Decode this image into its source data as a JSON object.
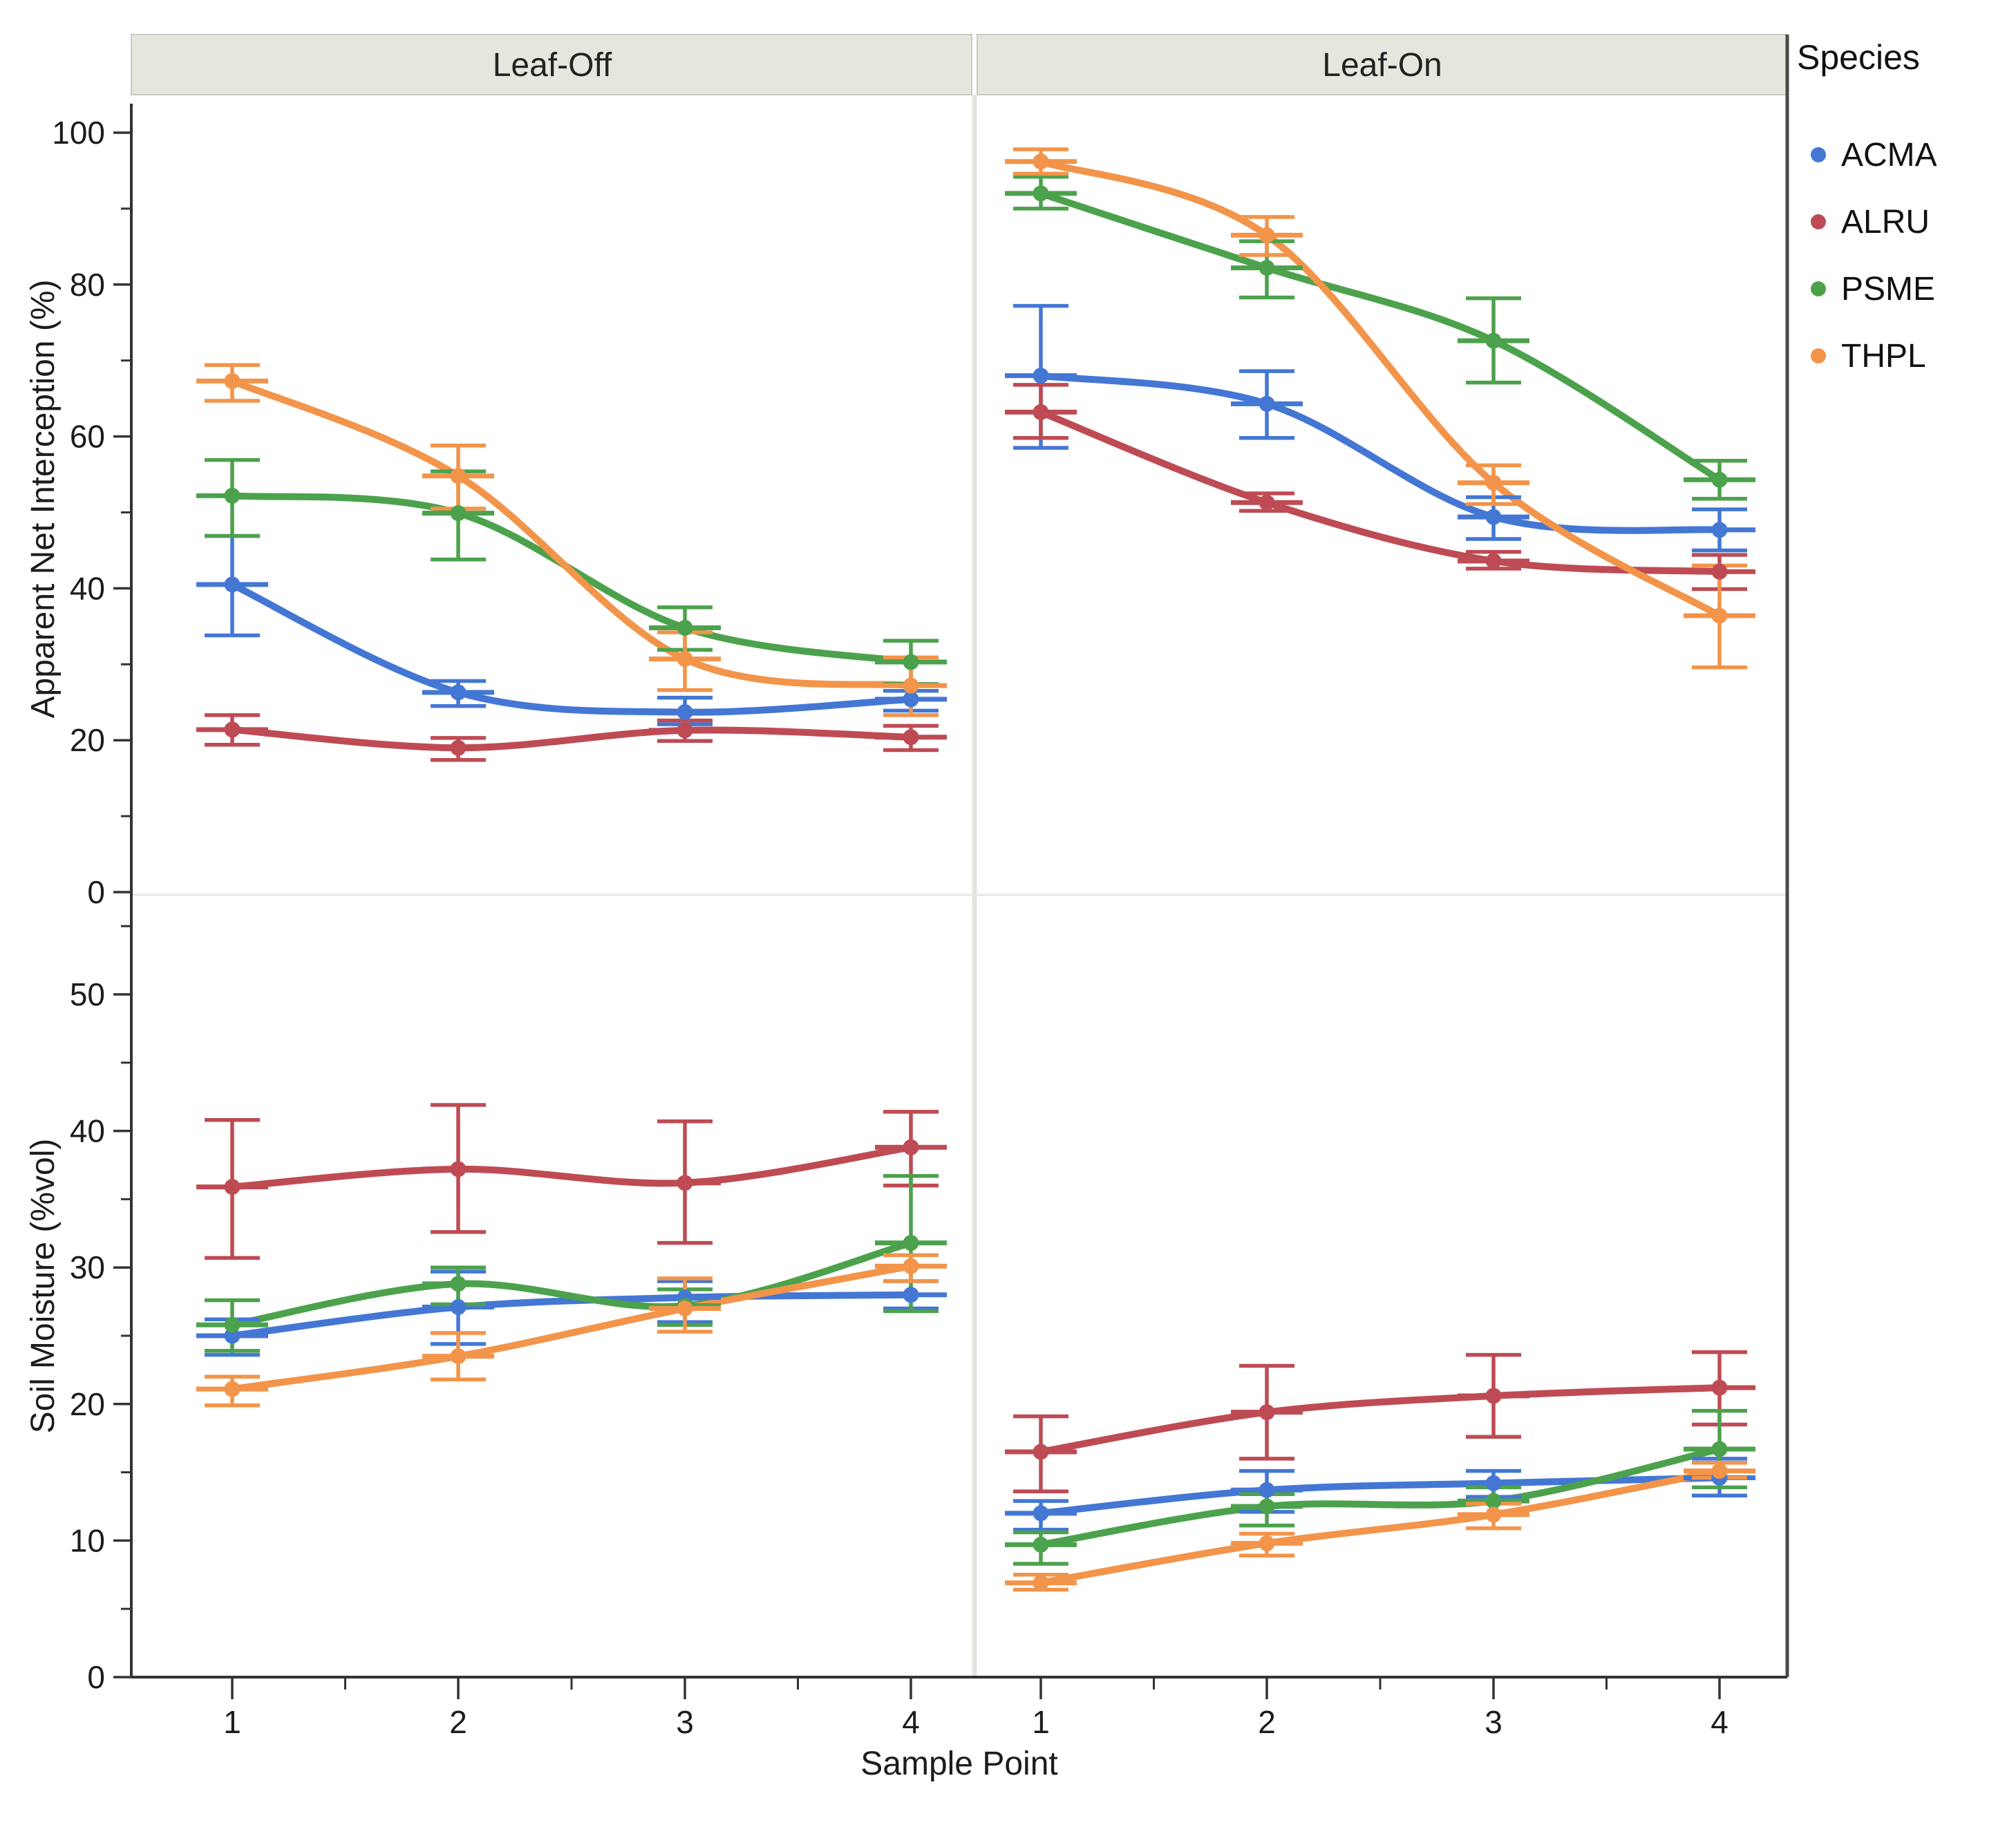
{
  "facets": [
    {
      "label": "Leaf-Off"
    },
    {
      "label": "Leaf-On"
    }
  ],
  "legend": {
    "title": "Species",
    "items": [
      {
        "label": "ACMA",
        "color": "#4477D4"
      },
      {
        "label": "ALRU",
        "color": "#BE4B54"
      },
      {
        "label": "PSME",
        "color": "#4CA24C"
      },
      {
        "label": "THPL",
        "color": "#F2944A"
      }
    ]
  },
  "axes": {
    "x": {
      "title": "Sample Point",
      "tick_labels": [
        "1",
        "2",
        "3",
        "4"
      ],
      "tick_values": [
        1,
        2,
        3,
        4
      ]
    },
    "y_top": {
      "title": "Apparent Net Interception (%)",
      "tick_values": [
        0,
        20,
        40,
        60,
        80,
        100
      ],
      "tick_labels": [
        "0",
        "20",
        "40",
        "60",
        "80",
        "100"
      ],
      "minor_ticks": [
        10,
        30,
        50,
        70,
        90
      ],
      "range": [
        0,
        104
      ]
    },
    "y_bottom": {
      "title": "Soil Moisture (%vol)",
      "tick_values": [
        0,
        10,
        20,
        30,
        40,
        50
      ],
      "tick_labels": [
        "0",
        "10",
        "20",
        "30",
        "40",
        "50"
      ],
      "minor_ticks": [
        5,
        15,
        25,
        35,
        45,
        55
      ],
      "range": [
        0,
        57.3
      ]
    }
  },
  "colors": {
    "facet_strip_bg": "#E7E6DD",
    "facet_strip_border": "#CBCAC1",
    "axis_line": "#333333",
    "panel_right_frame": "#4A4A4A",
    "panel_divider": "#E4E4DF",
    "row_separator": "#E6E6E2"
  },
  "chart_data": [
    {
      "type": "line",
      "facet": "Leaf-Off",
      "ylabel": "Apparent Net Interception (%)",
      "xlabel": "Sample Point",
      "x": [
        1,
        2,
        3,
        4
      ],
      "ylim": [
        0,
        104
      ],
      "grid": false,
      "legend_position": "right",
      "series": [
        {
          "name": "ACMA",
          "color": "#4477D4",
          "values": [
            40.5,
            26.3,
            23.7,
            25.4
          ],
          "err_lo": [
            33.8,
            24.5,
            22.1,
            23.9
          ],
          "err_hi": [
            46.9,
            27.8,
            25.6,
            26.5
          ]
        },
        {
          "name": "ALRU",
          "color": "#BE4B54",
          "values": [
            21.4,
            19.0,
            21.3,
            20.4
          ],
          "err_lo": [
            19.4,
            17.4,
            19.9,
            18.7
          ],
          "err_hi": [
            23.3,
            20.3,
            22.6,
            21.9
          ]
        },
        {
          "name": "PSME",
          "color": "#4CA24C",
          "values": [
            52.2,
            49.9,
            34.8,
            30.3
          ],
          "err_lo": [
            46.9,
            43.8,
            31.9,
            27.4
          ],
          "err_hi": [
            56.9,
            55.4,
            37.5,
            33.1
          ]
        },
        {
          "name": "THPL",
          "color": "#F2944A",
          "values": [
            67.3,
            54.8,
            30.7,
            27.2
          ],
          "err_lo": [
            64.7,
            50.5,
            26.6,
            23.3
          ],
          "err_hi": [
            69.4,
            58.8,
            34.2,
            30.9
          ]
        }
      ]
    },
    {
      "type": "line",
      "facet": "Leaf-On",
      "ylabel": "Apparent Net Interception (%)",
      "xlabel": "Sample Point",
      "x": [
        1,
        2,
        3,
        4
      ],
      "ylim": [
        0,
        104
      ],
      "grid": false,
      "legend_position": "right",
      "series": [
        {
          "name": "ACMA",
          "color": "#4477D4",
          "values": [
            68.0,
            64.3,
            49.4,
            47.7
          ],
          "err_lo": [
            58.5,
            59.8,
            46.5,
            45.0
          ],
          "err_hi": [
            77.2,
            68.6,
            52.0,
            50.4
          ]
        },
        {
          "name": "ALRU",
          "color": "#BE4B54",
          "values": [
            63.2,
            51.3,
            43.6,
            42.2
          ],
          "err_lo": [
            59.8,
            50.2,
            42.6,
            39.9
          ],
          "err_hi": [
            66.8,
            52.5,
            44.8,
            44.4
          ]
        },
        {
          "name": "PSME",
          "color": "#4CA24C",
          "values": [
            92.0,
            82.2,
            72.6,
            54.3
          ],
          "err_lo": [
            90.0,
            78.3,
            67.1,
            51.8
          ],
          "err_hi": [
            94.2,
            85.7,
            78.2,
            56.8
          ]
        },
        {
          "name": "THPL",
          "color": "#F2944A",
          "values": [
            96.2,
            86.5,
            53.9,
            36.4
          ],
          "err_lo": [
            94.6,
            83.9,
            51.1,
            29.6
          ],
          "err_hi": [
            97.8,
            88.9,
            56.2,
            43.0
          ]
        }
      ]
    },
    {
      "type": "line",
      "facet": "Leaf-Off",
      "ylabel": "Soil Moisture (%vol)",
      "xlabel": "Sample Point",
      "x": [
        1,
        2,
        3,
        4
      ],
      "ylim": [
        0,
        57.3
      ],
      "grid": false,
      "legend_position": "right",
      "series": [
        {
          "name": "ACMA",
          "color": "#4477D4",
          "values": [
            25.0,
            27.1,
            27.8,
            28.0
          ],
          "err_lo": [
            23.6,
            24.4,
            26.0,
            27.0
          ],
          "err_hi": [
            26.2,
            29.7,
            29.0,
            29.0
          ]
        },
        {
          "name": "ALRU",
          "color": "#BE4B54",
          "values": [
            35.9,
            37.2,
            36.2,
            38.8
          ],
          "err_lo": [
            30.7,
            32.6,
            31.8,
            36.0
          ],
          "err_hi": [
            40.8,
            41.9,
            40.7,
            41.4
          ]
        },
        {
          "name": "PSME",
          "color": "#4CA24C",
          "values": [
            25.8,
            28.8,
            27.2,
            31.8
          ],
          "err_lo": [
            23.9,
            27.3,
            25.8,
            26.8
          ],
          "err_hi": [
            27.6,
            30.0,
            28.4,
            36.7
          ]
        },
        {
          "name": "THPL",
          "color": "#F2944A",
          "values": [
            21.1,
            23.5,
            27.0,
            30.1
          ],
          "err_lo": [
            19.9,
            21.8,
            25.3,
            29.0
          ],
          "err_hi": [
            22.0,
            25.2,
            29.2,
            30.9
          ]
        }
      ]
    },
    {
      "type": "line",
      "facet": "Leaf-On",
      "ylabel": "Soil Moisture (%vol)",
      "xlabel": "Sample Point",
      "x": [
        1,
        2,
        3,
        4
      ],
      "ylim": [
        0,
        57.3
      ],
      "grid": false,
      "legend_position": "right",
      "series": [
        {
          "name": "ACMA",
          "color": "#4477D4",
          "values": [
            12.0,
            13.7,
            14.2,
            14.6
          ],
          "err_lo": [
            10.8,
            12.1,
            13.2,
            13.3
          ],
          "err_hi": [
            12.9,
            15.1,
            15.1,
            16.0
          ]
        },
        {
          "name": "ALRU",
          "color": "#BE4B54",
          "values": [
            16.5,
            19.4,
            20.6,
            21.2
          ],
          "err_lo": [
            13.6,
            16.0,
            17.6,
            18.5
          ],
          "err_hi": [
            19.1,
            22.8,
            23.6,
            23.8
          ]
        },
        {
          "name": "PSME",
          "color": "#4CA24C",
          "values": [
            9.7,
            12.5,
            12.9,
            16.7
          ],
          "err_lo": [
            8.3,
            11.1,
            11.9,
            13.9
          ],
          "err_hi": [
            10.6,
            13.4,
            13.9,
            19.5
          ]
        },
        {
          "name": "THPL",
          "color": "#F2944A",
          "values": [
            6.9,
            9.8,
            11.9,
            15.1
          ],
          "err_lo": [
            6.4,
            8.9,
            10.9,
            14.6
          ],
          "err_hi": [
            7.5,
            10.5,
            12.7,
            15.7
          ]
        }
      ]
    }
  ]
}
